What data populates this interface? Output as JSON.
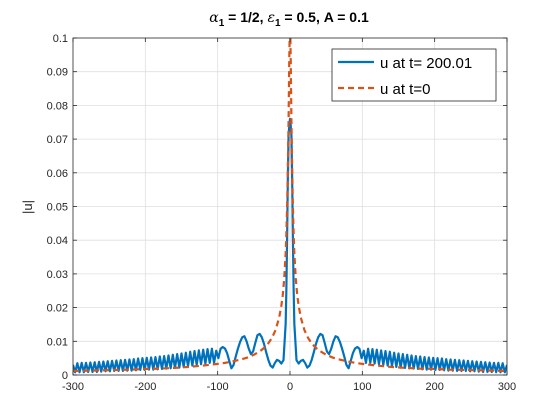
{
  "chart_data": {
    "type": "line",
    "title_parts": {
      "alpha_sym": "α",
      "alpha_sub": "1",
      "alpha_val": " = 1/2, ",
      "eps_sym": "ε",
      "eps_sub": "1",
      "eps_val": " = 0.5, A = 0.1"
    },
    "xlabel": "",
    "ylabel": "|u|",
    "xlim": [
      -300,
      300
    ],
    "ylim": [
      0,
      0.1
    ],
    "xticks": [
      -300,
      -200,
      -100,
      0,
      100,
      200,
      300
    ],
    "yticks": [
      0,
      0.01,
      0.02,
      0.03,
      0.04,
      0.05,
      0.06,
      0.07,
      0.08,
      0.09,
      0.1
    ],
    "xtick_labels": [
      "-300",
      "-200",
      "-100",
      "0",
      "100",
      "200",
      "300"
    ],
    "ytick_labels": [
      "0",
      "0.01",
      "0.02",
      "0.03",
      "0.04",
      "0.05",
      "0.06",
      "0.07",
      "0.08",
      "0.09",
      "0.1"
    ],
    "grid": true,
    "legend_position": "top-right",
    "series": [
      {
        "name": "u at t= 200.01",
        "color": "#0072BD",
        "style": "solid",
        "x": [
          -300,
          -297,
          -294,
          -291,
          -288,
          -285,
          -282,
          -279,
          -276,
          -273,
          -270,
          -267,
          -264,
          -261,
          -258,
          -255,
          -252,
          -249,
          -246,
          -243,
          -240,
          -237,
          -234,
          -231,
          -228,
          -225,
          -222,
          -219,
          -216,
          -213,
          -210,
          -207,
          -204,
          -201,
          -198,
          -195,
          -192,
          -189,
          -186,
          -183,
          -180,
          -177,
          -174,
          -171,
          -168,
          -165,
          -162,
          -159,
          -156,
          -153,
          -150,
          -147,
          -144,
          -141,
          -138,
          -135,
          -132,
          -129,
          -126,
          -123,
          -120,
          -117,
          -114,
          -111,
          -108,
          -105,
          -102,
          -99,
          -96,
          -93,
          -90,
          -87,
          -84,
          -81,
          -78,
          -75,
          -72,
          -69,
          -66,
          -63,
          -60,
          -57,
          -54,
          -51,
          -48,
          -45,
          -42,
          -39,
          -36,
          -33,
          -30,
          -27,
          -24,
          -21,
          -18,
          -15,
          -12,
          -9,
          -6,
          -5,
          -4,
          -3,
          -2,
          -1,
          0,
          1,
          2,
          3,
          4,
          5,
          6,
          9,
          12,
          15,
          18,
          21,
          24,
          27,
          30,
          33,
          36,
          39,
          42,
          45,
          48,
          51,
          54,
          57,
          60,
          63,
          66,
          69,
          72,
          75,
          78,
          81,
          84,
          87,
          90,
          93,
          96,
          99,
          102,
          105,
          108,
          111,
          114,
          117,
          120,
          123,
          126,
          129,
          132,
          135,
          138,
          141,
          144,
          147,
          150,
          153,
          156,
          159,
          162,
          165,
          168,
          171,
          174,
          177,
          180,
          183,
          186,
          189,
          192,
          195,
          198,
          201,
          204,
          207,
          210,
          213,
          216,
          219,
          222,
          225,
          228,
          231,
          234,
          237,
          240,
          243,
          246,
          249,
          252,
          255,
          258,
          261,
          264,
          267,
          270,
          273,
          276,
          279,
          282,
          285,
          288,
          291,
          294,
          297,
          300
        ],
        "y": [
          0.003,
          0.0008,
          0.0035,
          0.0008,
          0.0036,
          0.0008,
          0.0036,
          0.0009,
          0.0037,
          0.0009,
          0.0038,
          0.0009,
          0.0039,
          0.001,
          0.004,
          0.0011,
          0.0041,
          0.0011,
          0.0042,
          0.0012,
          0.0043,
          0.0012,
          0.0044,
          0.0012,
          0.0045,
          0.0013,
          0.0046,
          0.0013,
          0.0047,
          0.0014,
          0.0049,
          0.0015,
          0.005,
          0.0015,
          0.0051,
          0.0016,
          0.0052,
          0.0016,
          0.0053,
          0.0017,
          0.0055,
          0.0018,
          0.0056,
          0.0019,
          0.0058,
          0.002,
          0.006,
          0.0021,
          0.0062,
          0.0022,
          0.0064,
          0.0024,
          0.0066,
          0.0026,
          0.0069,
          0.0028,
          0.0071,
          0.003,
          0.0073,
          0.0032,
          0.0075,
          0.0034,
          0.0077,
          0.0036,
          0.0078,
          0.0036,
          0.0072,
          0.005,
          0.0078,
          0.0083,
          0.0079,
          0.0065,
          0.0042,
          0.002,
          0.003,
          0.0055,
          0.0078,
          0.0098,
          0.0112,
          0.0115,
          0.01,
          0.0078,
          0.0062,
          0.007,
          0.0095,
          0.0118,
          0.0122,
          0.0112,
          0.0093,
          0.0068,
          0.0045,
          0.0028,
          0.0022,
          0.0035,
          0.0045,
          0.0042,
          0.0034,
          0.0044,
          0.0152,
          0.0255,
          0.0405,
          0.058,
          0.071,
          0.074,
          0.076,
          0.074,
          0.071,
          0.058,
          0.0405,
          0.0255,
          0.0152,
          0.0044,
          0.0034,
          0.0042,
          0.0045,
          0.0035,
          0.0022,
          0.0028,
          0.0045,
          0.0068,
          0.0093,
          0.0112,
          0.0122,
          0.0118,
          0.0095,
          0.007,
          0.0062,
          0.0078,
          0.01,
          0.0115,
          0.0112,
          0.0098,
          0.0078,
          0.0055,
          0.003,
          0.002,
          0.0042,
          0.0065,
          0.0079,
          0.0083,
          0.0078,
          0.005,
          0.0072,
          0.0036,
          0.0078,
          0.0036,
          0.0077,
          0.0034,
          0.0075,
          0.0032,
          0.0073,
          0.003,
          0.0071,
          0.0028,
          0.0069,
          0.0026,
          0.0066,
          0.0024,
          0.0064,
          0.0022,
          0.0062,
          0.0021,
          0.006,
          0.002,
          0.0058,
          0.0019,
          0.0056,
          0.0018,
          0.0055,
          0.0017,
          0.0053,
          0.0016,
          0.0052,
          0.0016,
          0.0051,
          0.0015,
          0.005,
          0.0015,
          0.0049,
          0.0014,
          0.0047,
          0.0013,
          0.0046,
          0.0013,
          0.0045,
          0.0012,
          0.0044,
          0.0012,
          0.0043,
          0.0012,
          0.0042,
          0.0011,
          0.0041,
          0.0011,
          0.004,
          0.001,
          0.0039,
          0.0009,
          0.0038,
          0.0009,
          0.0037,
          0.0009,
          0.0036,
          0.0008,
          0.0036,
          0.0008,
          0.0035,
          0.0008,
          0.003
        ]
      },
      {
        "name": "u at t=0",
        "color": "#D95319",
        "style": "dashed",
        "x": [
          -300,
          -280,
          -260,
          -240,
          -220,
          -200,
          -180,
          -160,
          -140,
          -120,
          -100,
          -90,
          -80,
          -70,
          -60,
          -50,
          -40,
          -35,
          -30,
          -25,
          -20,
          -15,
          -12,
          -10,
          -8,
          -6,
          -5,
          -4,
          -3,
          -2,
          -1.5,
          -1,
          -0.5,
          0,
          0.5,
          1,
          1.5,
          2,
          3,
          4,
          5,
          6,
          8,
          10,
          12,
          15,
          20,
          25,
          30,
          35,
          40,
          50,
          60,
          70,
          80,
          90,
          100,
          120,
          140,
          160,
          180,
          200,
          220,
          240,
          260,
          280,
          300
        ],
        "y": [
          0.0012,
          0.0013,
          0.0014,
          0.0015,
          0.0016,
          0.0018,
          0.0019,
          0.0021,
          0.0024,
          0.0028,
          0.0033,
          0.0036,
          0.004,
          0.0045,
          0.0051,
          0.006,
          0.0073,
          0.0082,
          0.0094,
          0.011,
          0.0133,
          0.017,
          0.0205,
          0.0237,
          0.0285,
          0.036,
          0.042,
          0.05,
          0.061,
          0.075,
          0.084,
          0.094,
          0.102,
          0.106,
          0.102,
          0.094,
          0.084,
          0.075,
          0.061,
          0.05,
          0.042,
          0.036,
          0.0285,
          0.0237,
          0.0205,
          0.017,
          0.0133,
          0.011,
          0.0094,
          0.0082,
          0.0073,
          0.006,
          0.0051,
          0.0045,
          0.004,
          0.0036,
          0.0033,
          0.0028,
          0.0024,
          0.0021,
          0.0019,
          0.0018,
          0.0016,
          0.0015,
          0.0014,
          0.0013,
          0.0012
        ]
      }
    ]
  }
}
